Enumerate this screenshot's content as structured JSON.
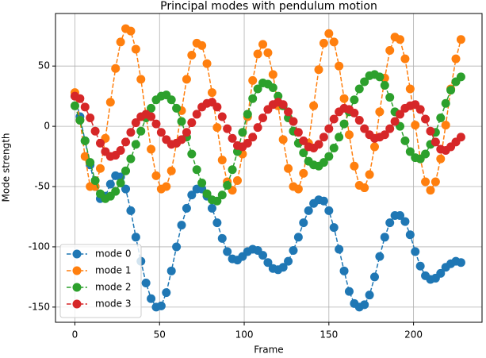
{
  "chart_data": {
    "type": "line",
    "title": "Principal modes with pendulum motion",
    "x_label": "Frame",
    "y_label": "Mode strength",
    "x": [
      0,
      3,
      6,
      9,
      12,
      15,
      18,
      21,
      24,
      27,
      30,
      33,
      36,
      39,
      42,
      45,
      48,
      51,
      54,
      57,
      60,
      63,
      66,
      69,
      72,
      75,
      78,
      81,
      84,
      87,
      90,
      93,
      96,
      99,
      102,
      105,
      108,
      111,
      114,
      117,
      120,
      123,
      126,
      129,
      132,
      135,
      138,
      141,
      144,
      147,
      150,
      153,
      156,
      159,
      162,
      165,
      168,
      171,
      174,
      177,
      180,
      183,
      186,
      189,
      192,
      195,
      198,
      201,
      204,
      207,
      210,
      213,
      216,
      219,
      222,
      225,
      228
    ],
    "series": [
      {
        "name": "mode 0",
        "color": "#1f77b4",
        "values": [
          25,
          8,
          -12,
          -32,
          -50,
          -60,
          -58,
          -48,
          -41,
          -42,
          -52,
          -70,
          -92,
          -112,
          -130,
          -143,
          -150,
          -149,
          -138,
          -120,
          -100,
          -82,
          -68,
          -57,
          -52,
          -52,
          -58,
          -68,
          -80,
          -93,
          -104,
          -110,
          -111,
          -108,
          -104,
          -102,
          -103,
          -107,
          -113,
          -118,
          -119,
          -117,
          -112,
          -103,
          -92,
          -80,
          -70,
          -64,
          -61,
          -62,
          -70,
          -84,
          -102,
          -120,
          -137,
          -147,
          -150,
          -148,
          -140,
          -125,
          -108,
          -92,
          -80,
          -74,
          -74,
          -79,
          -90,
          -104,
          -116,
          -124,
          -127,
          -126,
          -122,
          -117,
          -114,
          -112,
          -113
        ]
      },
      {
        "name": "mode 1",
        "color": "#ff7f0e",
        "values": [
          28,
          5,
          -25,
          -50,
          -50,
          -35,
          -10,
          20,
          48,
          70,
          81,
          79,
          64,
          39,
          9,
          -19,
          -41,
          -52,
          -50,
          -37,
          -14,
          13,
          39,
          59,
          69,
          67,
          52,
          28,
          -1,
          -28,
          -46,
          -53,
          -45,
          -23,
          8,
          38,
          60,
          68,
          61,
          43,
          17,
          -11,
          -35,
          -50,
          -52,
          -39,
          -14,
          17,
          47,
          69,
          77,
          70,
          50,
          23,
          -7,
          -33,
          -49,
          -51,
          -40,
          -17,
          12,
          40,
          63,
          74,
          72,
          56,
          31,
          1,
          -27,
          -46,
          -53,
          -46,
          -27,
          1,
          31,
          56,
          72
        ]
      },
      {
        "name": "mode 2",
        "color": "#2ca02c",
        "values": [
          17,
          5,
          -12,
          -30,
          -45,
          -56,
          -60,
          -58,
          -54,
          -47,
          -37,
          -27,
          -15,
          -4,
          7,
          15,
          22,
          25,
          26,
          22,
          15,
          4,
          -9,
          -23,
          -36,
          -47,
          -56,
          -61,
          -62,
          -57,
          -49,
          -36,
          -21,
          -5,
          10,
          23,
          31,
          36,
          35,
          32,
          25,
          17,
          7,
          -4,
          -14,
          -22,
          -29,
          -32,
          -33,
          -30,
          -25,
          -18,
          -9,
          2,
          12,
          22,
          31,
          37,
          42,
          43,
          41,
          34,
          24,
          12,
          0,
          -12,
          -21,
          -26,
          -27,
          -23,
          -15,
          -5,
          7,
          19,
          30,
          37,
          41
        ]
      },
      {
        "name": "mode 3",
        "color": "#d62728",
        "values": [
          25,
          23,
          16,
          7,
          -4,
          -14,
          -21,
          -25,
          -24,
          -20,
          -13,
          -5,
          3,
          8,
          10,
          8,
          2,
          -5,
          -11,
          -15,
          -14,
          -11,
          -5,
          3,
          10,
          16,
          19,
          20,
          16,
          8,
          -2,
          -10,
          -16,
          -17,
          -14,
          -9,
          -1,
          7,
          14,
          18,
          20,
          18,
          12,
          4,
          -5,
          -12,
          -17,
          -18,
          -15,
          -9,
          -2,
          6,
          12,
          15,
          14,
          11,
          5,
          -2,
          -7,
          -10,
          -9,
          -7,
          -2,
          4,
          10,
          15,
          17,
          18,
          14,
          6,
          -4,
          -13,
          -19,
          -20,
          -17,
          -13,
          -9
        ]
      }
    ],
    "xlim": [
      -11.45,
      240.45
    ],
    "ylim": [
      -162.6,
      93.6
    ],
    "xticks": [
      0,
      50,
      100,
      150,
      200
    ],
    "yticks": [
      -150,
      -100,
      -50,
      0,
      50
    ],
    "grid": true,
    "legend": "lower left"
  }
}
